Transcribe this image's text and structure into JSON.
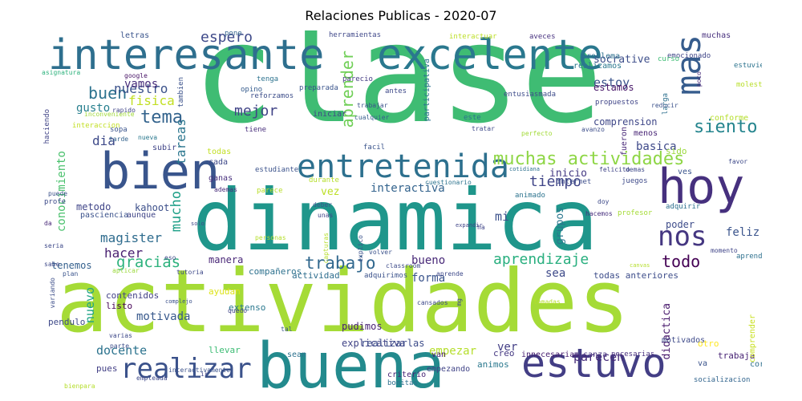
{
  "title": "Relaciones Publicas - 2020-07",
  "palette": "viridis",
  "words": [
    {
      "text": "clase",
      "color": "#3fbc73"
    },
    {
      "text": "dinamica",
      "color": "#1f968b"
    },
    {
      "text": "actividades",
      "color": "#a5db36"
    },
    {
      "text": "buena",
      "color": "#238a8d"
    },
    {
      "text": "bien",
      "color": "#39558c"
    },
    {
      "text": "interesante",
      "color": "#2e6f8e"
    },
    {
      "text": "excelente",
      "color": "#2a788e"
    },
    {
      "text": "hoy",
      "color": "#46307e"
    },
    {
      "text": "estuvo",
      "color": "#433e85"
    },
    {
      "text": "entretenida",
      "color": "#2d708e"
    },
    {
      "text": "mas",
      "color": "#365c8d"
    },
    {
      "text": "realizar",
      "color": "#3b528b"
    },
    {
      "text": "nos",
      "color": "#453781"
    },
    {
      "text": "muchas actividades",
      "color": "#8ed645"
    },
    {
      "text": "siento",
      "color": "#25858e"
    },
    {
      "text": "tema",
      "color": "#33638d"
    },
    {
      "text": "aprendizaje",
      "color": "#29af7f"
    },
    {
      "text": "gracias",
      "color": "#2db27d"
    },
    {
      "text": "trabajo",
      "color": "#31688e"
    },
    {
      "text": "todo",
      "color": "#440154"
    },
    {
      "text": "buen",
      "color": "#2c728e"
    },
    {
      "text": "mejor",
      "color": "#414487"
    },
    {
      "text": "magister",
      "color": "#2f6c8e"
    },
    {
      "text": "espero",
      "color": "#3e4989"
    },
    {
      "text": "aprender",
      "color": "#70cf57"
    },
    {
      "text": "nuestro",
      "color": "#3b528b"
    },
    {
      "text": "vamos",
      "color": "#472d7b"
    },
    {
      "text": "fisica",
      "color": "#c2df23"
    },
    {
      "text": "dia",
      "color": "#3e4a89"
    },
    {
      "text": "tiempo",
      "color": "#404588"
    },
    {
      "text": "tareas",
      "color": "#2a768e"
    },
    {
      "text": "estoy",
      "color": "#3a538b"
    },
    {
      "text": "mucho",
      "color": "#1fa088"
    },
    {
      "text": "gusto",
      "color": "#277f8e"
    },
    {
      "text": "conocimiento",
      "color": "#4ac16d"
    },
    {
      "text": "interactiva",
      "color": "#33638d"
    },
    {
      "text": "bueno",
      "color": "#482878"
    },
    {
      "text": "sea",
      "color": "#3e4a89"
    },
    {
      "text": "hacer",
      "color": "#481f70"
    },
    {
      "text": "nuevo",
      "color": "#20a486"
    },
    {
      "text": "feliz",
      "color": "#3a548c"
    },
    {
      "text": "mi",
      "color": "#3b518b"
    },
    {
      "text": "basica",
      "color": "#3e4989"
    },
    {
      "text": "parecen",
      "color": "#472c7a"
    },
    {
      "text": "docente",
      "color": "#2c738e"
    },
    {
      "text": "motivada",
      "color": "#38598c"
    },
    {
      "text": "empezar",
      "color": "#b5de2b"
    },
    {
      "text": "ver",
      "color": "#433e85"
    },
    {
      "text": "forma",
      "color": "#3a548c"
    },
    {
      "text": "vez",
      "color": "#bddf26"
    },
    {
      "text": "comprension",
      "color": "#3f4788"
    },
    {
      "text": "socrative",
      "color": "#3d4e8a"
    },
    {
      "text": "estamos",
      "color": "#481769"
    },
    {
      "text": "inicio",
      "color": "#443983"
    },
    {
      "text": "kahoot",
      "color": "#3c4f8a"
    },
    {
      "text": "metodo",
      "color": "#404588"
    },
    {
      "text": "poder",
      "color": "#3e4c8a"
    },
    {
      "text": "grupos",
      "color": "#2a768e"
    },
    {
      "text": "didactica",
      "color": "#481a6c"
    },
    {
      "text": "explicativa",
      "color": "#414487"
    },
    {
      "text": "compañeros",
      "color": "#2d718e"
    },
    {
      "text": "tenemos",
      "color": "#34608d"
    },
    {
      "text": "actividad",
      "color": "#2e6e8e"
    },
    {
      "text": "todas anteriores",
      "color": "#3d4d8a"
    },
    {
      "text": "manera",
      "color": "#482677"
    },
    {
      "text": "pudimos",
      "color": "#482173"
    },
    {
      "text": "realizarlas",
      "color": "#3d4d8a"
    },
    {
      "text": "contenidos",
      "color": "#424186"
    },
    {
      "text": "listo",
      "color": "#440154"
    },
    {
      "text": "extenso",
      "color": "#2a788e"
    },
    {
      "text": "ayudan",
      "color": "#dde318"
    },
    {
      "text": "pendulo",
      "color": "#3e4989"
    },
    {
      "text": "pues",
      "color": "#423f85"
    },
    {
      "text": "llevar",
      "color": "#3dbc74"
    },
    {
      "text": "sean",
      "color": "#2c728e"
    },
    {
      "text": "van",
      "color": "#482071"
    },
    {
      "text": "animos",
      "color": "#2a788e"
    },
    {
      "text": "creo",
      "color": "#453882"
    },
    {
      "text": "empezando",
      "color": "#414487"
    },
    {
      "text": "criterio",
      "color": "#482576"
    },
    {
      "text": "bonitas",
      "color": "#2d708e"
    },
    {
      "text": "innecesarias",
      "color": "#481f70"
    },
    {
      "text": "alcanza",
      "color": "#46337f"
    },
    {
      "text": "necesarias",
      "color": "#472f7d"
    },
    {
      "text": "motivados",
      "color": "#3e4a89"
    },
    {
      "text": "otro",
      "color": "#fde725"
    },
    {
      "text": "trabaja",
      "color": "#482475"
    },
    {
      "text": "correctas",
      "color": "#2e6f8e"
    },
    {
      "text": "va",
      "color": "#3a538b"
    },
    {
      "text": "socializacion",
      "color": "#32658e"
    },
    {
      "text": "comprender",
      "color": "#c8e020"
    },
    {
      "text": "problema",
      "color": "#2d708e"
    },
    {
      "text": "realizamos",
      "color": "#2a788e"
    },
    {
      "text": "emocionado",
      "color": "#404688"
    },
    {
      "text": "muchas",
      "color": "#472f7d"
    },
    {
      "text": "estuvieron",
      "color": "#2c738e"
    },
    {
      "text": "curso",
      "color": "#3dbc74"
    },
    {
      "text": "molesta",
      "color": "#b8de29"
    },
    {
      "text": "pone",
      "color": "#33638d"
    },
    {
      "text": "herramientas",
      "color": "#3f4889"
    },
    {
      "text": "interactuar",
      "color": "#bddf26"
    },
    {
      "text": "aveces",
      "color": "#46307e"
    },
    {
      "text": "letras",
      "color": "#3a548c"
    },
    {
      "text": "asignatura",
      "color": "#2db27d"
    },
    {
      "text": "google",
      "color": "#481467"
    },
    {
      "text": "tambien",
      "color": "#3b528b"
    },
    {
      "text": "tenga",
      "color": "#2c728e"
    },
    {
      "text": "opino",
      "color": "#365c8d"
    },
    {
      "text": "reforzamos",
      "color": "#3d4e8a"
    },
    {
      "text": "preparada",
      "color": "#3a548c"
    },
    {
      "text": "parecio",
      "color": "#443a83"
    },
    {
      "text": "antes",
      "color": "#3e4989"
    },
    {
      "text": "participativa",
      "color": "#2c738e"
    },
    {
      "text": "entusiasmada",
      "color": "#3e4c8a"
    },
    {
      "text": "propuestos",
      "color": "#404588"
    },
    {
      "text": "fueron",
      "color": "#482878"
    },
    {
      "text": "larga",
      "color": "#2d708e"
    },
    {
      "text": "poco",
      "color": "#472c7a"
    },
    {
      "text": "reducir",
      "color": "#3b528b"
    },
    {
      "text": "conforme",
      "color": "#b5de2b"
    },
    {
      "text": "haciendo",
      "color": "#414487"
    },
    {
      "text": "inconveniente",
      "color": "#a0da39"
    },
    {
      "text": "rapido",
      "color": "#404588"
    },
    {
      "text": "interaccion",
      "color": "#c2df23"
    },
    {
      "text": "sopa",
      "color": "#3a548c"
    },
    {
      "text": "tarde",
      "color": "#33638d"
    },
    {
      "text": "nueva",
      "color": "#2a788e"
    },
    {
      "text": "tiene",
      "color": "#472d7b"
    },
    {
      "text": "iniciar",
      "color": "#404588"
    },
    {
      "text": "trabajar",
      "color": "#3b528b"
    },
    {
      "text": "cualquier",
      "color": "#365c8d"
    },
    {
      "text": "este",
      "color": "#2c738e"
    },
    {
      "text": "tratar",
      "color": "#3e4989"
    },
    {
      "text": "perfecto",
      "color": "#a2da37"
    },
    {
      "text": "avanzo",
      "color": "#3d4e8a"
    },
    {
      "text": "menos",
      "color": "#482475"
    },
    {
      "text": "sido",
      "color": "#9bd93c"
    },
    {
      "text": "favor",
      "color": "#3e4989"
    },
    {
      "text": "subir",
      "color": "#404588"
    },
    {
      "text": "todas",
      "color": "#c2df23"
    },
    {
      "text": "facil",
      "color": "#3a548c"
    },
    {
      "text": "cada",
      "color": "#3e4989"
    },
    {
      "text": "estudiante",
      "color": "#3b528b"
    },
    {
      "text": "ganas",
      "color": "#472f7d"
    },
    {
      "text": "durante",
      "color": "#b5de2b"
    },
    {
      "text": "cotidiana",
      "color": "#2d708e"
    },
    {
      "text": "felicito",
      "color": "#404588"
    },
    {
      "text": "demas",
      "color": "#3e4989"
    },
    {
      "text": "ves",
      "color": "#3a548c"
    },
    {
      "text": "juegos",
      "color": "#3e4a89"
    },
    {
      "text": "puede",
      "color": "#3b528b"
    },
    {
      "text": "ademas",
      "color": "#472c7a"
    },
    {
      "text": "parece",
      "color": "#b8de29"
    },
    {
      "text": "cuestionario",
      "color": "#2c738e"
    },
    {
      "text": "animado",
      "color": "#2c738e"
    },
    {
      "text": "internet",
      "color": "#3d4e8a"
    },
    {
      "text": "profe",
      "color": "#3e4c8a"
    },
    {
      "text": "pasciencia",
      "color": "#3b528b"
    },
    {
      "text": "aunque",
      "color": "#404588"
    },
    {
      "text": "deber",
      "color": "#3a548c"
    },
    {
      "text": "unas",
      "color": "#404588"
    },
    {
      "text": "doy",
      "color": "#3e4989"
    },
    {
      "text": "hacemos",
      "color": "#472f7d"
    },
    {
      "text": "profesor",
      "color": "#a5db36"
    },
    {
      "text": "adquirir",
      "color": "#2d708e"
    },
    {
      "text": "da",
      "color": "#482878"
    },
    {
      "text": "solo",
      "color": "#3e4989"
    },
    {
      "text": "personas",
      "color": "#b5de2b"
    },
    {
      "text": "expandir",
      "color": "#404588"
    },
    {
      "text": "ha",
      "color": "#404588"
    },
    {
      "text": "voy",
      "color": "#3e4989"
    },
    {
      "text": "capturas",
      "color": "#b5de2b"
    },
    {
      "text": "explico",
      "color": "#3b528b"
    },
    {
      "text": "seria",
      "color": "#3e4989"
    },
    {
      "text": "eso",
      "color": "#3e4989"
    },
    {
      "text": "volver",
      "color": "#3b528b"
    },
    {
      "text": "momento",
      "color": "#404588"
    },
    {
      "text": "aprendiendo",
      "color": "#2d708e"
    },
    {
      "text": "sabe",
      "color": "#3e4989"
    },
    {
      "text": "plan",
      "color": "#3a548c"
    },
    {
      "text": "aplicar",
      "color": "#9bd93c"
    },
    {
      "text": "tutoria",
      "color": "#3e4989"
    },
    {
      "text": "adquirimos",
      "color": "#3b528b"
    },
    {
      "text": "classroom",
      "color": "#3e4c8a"
    },
    {
      "text": "aprende",
      "color": "#3e4989"
    },
    {
      "text": "canvas",
      "color": "#b5de2b"
    },
    {
      "text": "variando",
      "color": "#3d4e8a"
    },
    {
      "text": "complejo",
      "color": "#3b528b"
    },
    {
      "text": "quedo",
      "color": "#404588"
    },
    {
      "text": "cansados",
      "color": "#3e4989"
    },
    {
      "text": "mg",
      "color": "#3e4989"
    },
    {
      "text": "tomadas",
      "color": "#b5de2b"
    },
    {
      "text": "tal",
      "color": "#3a548c"
    },
    {
      "text": "varias",
      "color": "#3e4989"
    },
    {
      "text": "parte",
      "color": "#3d4e8a"
    },
    {
      "text": "ir",
      "color": "#404588"
    },
    {
      "text": "interactivamente",
      "color": "#3b528b"
    },
    {
      "text": "empleada",
      "color": "#3e4989"
    },
    {
      "text": "bienpara",
      "color": "#b5de2b"
    }
  ]
}
